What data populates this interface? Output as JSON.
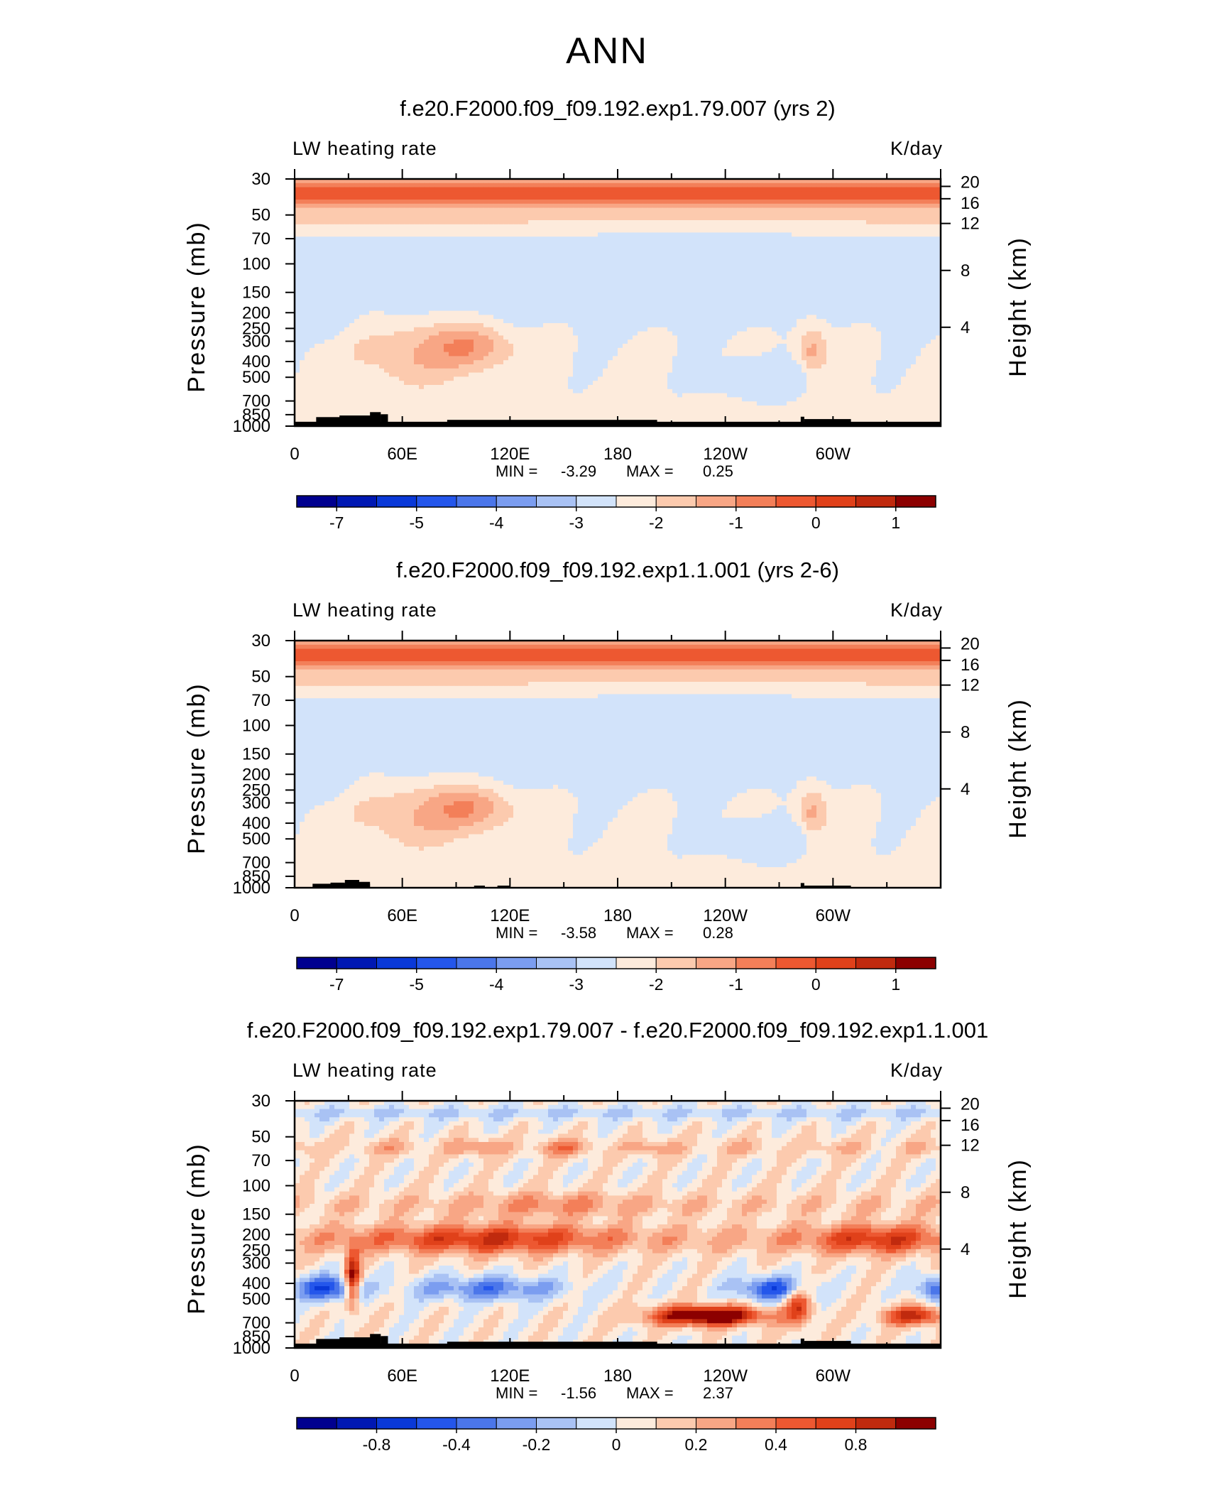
{
  "main_title": "ANN",
  "chart_data": [
    {
      "type": "heatmap",
      "title": "f.e20.F2000.f09_f09.192.exp1.79.007 (yrs 2)",
      "left_label": "LW heating rate",
      "right_label": "K/day",
      "ylabel": "Pressure (mb)",
      "y2label": "Height (km)",
      "x_ticks": [
        "0",
        "60E",
        "120E",
        "180",
        "120W",
        "60W"
      ],
      "y_ticks": [
        "30",
        "50",
        "70",
        "100",
        "150",
        "200",
        "250",
        "300",
        "400",
        "500",
        "700",
        "850",
        "1000"
      ],
      "y2_ticks": [
        "20",
        "16",
        "12",
        "8",
        "4"
      ],
      "min_label": "MIN =",
      "min_value": "-3.29",
      "max_label": "MAX =",
      "max_value": "0.25",
      "colorbar_labels": [
        "-7",
        "-5",
        "-4",
        "-3",
        "-2",
        "-1",
        "0",
        "1"
      ],
      "kind": "abs",
      "topo": "full"
    },
    {
      "type": "heatmap",
      "title": "f.e20.F2000.f09_f09.192.exp1.1.001 (yrs 2-6)",
      "left_label": "LW heating rate",
      "right_label": "K/day",
      "ylabel": "Pressure (mb)",
      "y2label": "Height (km)",
      "x_ticks": [
        "0",
        "60E",
        "120E",
        "180",
        "120W",
        "60W"
      ],
      "y_ticks": [
        "30",
        "50",
        "70",
        "100",
        "150",
        "200",
        "250",
        "300",
        "400",
        "500",
        "700",
        "850",
        "1000"
      ],
      "y2_ticks": [
        "20",
        "16",
        "12",
        "8",
        "4"
      ],
      "min_label": "MIN =",
      "min_value": "-3.58",
      "max_label": "MAX =",
      "max_value": "0.28",
      "colorbar_labels": [
        "-7",
        "-5",
        "-4",
        "-3",
        "-2",
        "-1",
        "0",
        "1"
      ],
      "kind": "abs",
      "topo": "partial"
    },
    {
      "type": "heatmap",
      "title": "f.e20.F2000.f09_f09.192.exp1.79.007 - f.e20.F2000.f09_f09.192.exp1.1.001",
      "left_label": "LW heating rate",
      "right_label": "K/day",
      "ylabel": "Pressure (mb)",
      "y2label": "Height (km)",
      "x_ticks": [
        "0",
        "60E",
        "120E",
        "180",
        "120W",
        "60W"
      ],
      "y_ticks": [
        "30",
        "50",
        "70",
        "100",
        "150",
        "200",
        "250",
        "300",
        "400",
        "500",
        "700",
        "850",
        "1000"
      ],
      "y2_ticks": [
        "20",
        "16",
        "12",
        "8",
        "4"
      ],
      "min_label": "MIN =",
      "min_value": "-1.56",
      "max_label": "MAX =",
      "max_value": "2.37",
      "colorbar_labels": [
        "-0.8",
        "-0.4",
        "-0.2",
        "0",
        "0.2",
        "0.4",
        "0.8"
      ],
      "kind": "diff",
      "topo": "full"
    }
  ],
  "colors": {
    "palette": [
      "#00008f",
      "#0018b3",
      "#0a39d8",
      "#2456eb",
      "#4b76ea",
      "#7b9df0",
      "#a9c2f4",
      "#d2e3fa",
      "#fdebdc",
      "#fccaae",
      "#f8a685",
      "#f37f59",
      "#ed5831",
      "#e0411a",
      "#c02a0e",
      "#8c0000"
    ],
    "topography": "#000000"
  }
}
